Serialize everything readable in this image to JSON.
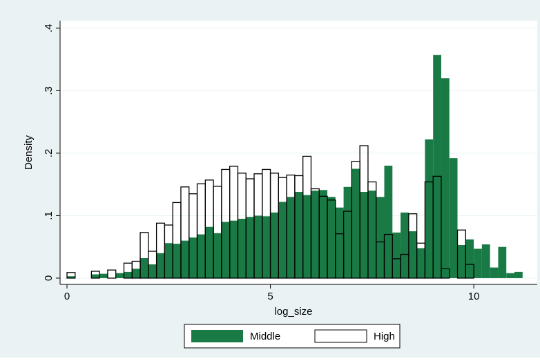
{
  "chart_data": {
    "type": "histogram",
    "x_label": "log_size",
    "y_label": "Density",
    "xlim": [
      -0.17,
      11.56
    ],
    "ylim": [
      -0.01,
      0.412
    ],
    "xticks": [
      0,
      5,
      10
    ],
    "yticks": [
      {
        "value": 0,
        "label": "0"
      },
      {
        "value": 0.1,
        "label": ".1"
      },
      {
        "value": 0.2,
        "label": ".2"
      },
      {
        "value": 0.3,
        "label": ".3"
      },
      {
        "value": 0.4,
        "label": ".4"
      }
    ],
    "grid": true,
    "legend_position": "bottom",
    "series": [
      {
        "name": "Middle",
        "color": "#1a7a45",
        "filled": true,
        "bins": [
          0,
          0.2,
          0.4,
          0.6,
          0.8,
          1,
          1.2,
          1.4,
          1.6,
          1.8,
          2,
          2.2,
          2.4,
          2.6,
          2.8,
          3,
          3.2,
          3.4,
          3.6,
          3.8,
          4,
          4.2,
          4.4,
          4.6,
          4.8,
          5,
          5.2,
          5.4,
          5.6,
          5.8,
          6,
          6.2,
          6.4,
          6.6,
          6.8,
          7,
          7.2,
          7.4,
          7.6,
          7.8,
          8,
          8.2,
          8.4,
          8.6,
          8.8,
          9,
          9.2,
          9.4,
          9.6,
          9.8,
          10,
          10.2,
          10.4,
          10.6,
          10.8,
          11,
          11.2
        ],
        "values": [
          0.003,
          0,
          0,
          0.006,
          0.007,
          0,
          0.008,
          0.01,
          0.015,
          0.032,
          0.022,
          0.04,
          0.056,
          0.055,
          0.06,
          0.065,
          0.07,
          0.082,
          0.072,
          0.09,
          0.092,
          0.095,
          0.098,
          0.1,
          0.099,
          0.105,
          0.122,
          0.13,
          0.138,
          0.133,
          0.14,
          0.141,
          0.13,
          0.113,
          0.146,
          0.175,
          0.138,
          0.14,
          0.13,
          0.18,
          0.073,
          0.105,
          0.075,
          0.048,
          0.222,
          0.357,
          0.32,
          0.192,
          0.053,
          0.062,
          0.047,
          0.054,
          0.017,
          0.05,
          0.008,
          0.01
        ]
      },
      {
        "name": "High",
        "color": "#000000",
        "filled": false,
        "bins": [
          0,
          0.2,
          0.4,
          0.6,
          0.8,
          1,
          1.2,
          1.4,
          1.6,
          1.8,
          2,
          2.2,
          2.4,
          2.6,
          2.8,
          3,
          3.2,
          3.4,
          3.6,
          3.8,
          4,
          4.2,
          4.4,
          4.6,
          4.8,
          5,
          5.2,
          5.4,
          5.6,
          5.8,
          6,
          6.2,
          6.4,
          6.6,
          6.8,
          7,
          7.2,
          7.4,
          7.6,
          7.8,
          8,
          8.2,
          8.4,
          8.6,
          8.8,
          9,
          9.2,
          9.4,
          9.6,
          9.8,
          10
        ],
        "values": [
          0.009,
          0,
          0,
          0.011,
          0,
          0.013,
          0,
          0.024,
          0.027,
          0.073,
          0.043,
          0.088,
          0.085,
          0.121,
          0.146,
          0.135,
          0.151,
          0.157,
          0.147,
          0.174,
          0.179,
          0.168,
          0.159,
          0.167,
          0.174,
          0.168,
          0.161,
          0.165,
          0.164,
          0.195,
          0.143,
          0.131,
          0.125,
          0.071,
          0.107,
          0.187,
          0.212,
          0.154,
          0.058,
          0.07,
          0.031,
          0.038,
          0.103,
          0.056,
          0.154,
          0.163,
          0.015,
          0,
          0.077,
          0.022
        ]
      }
    ]
  }
}
